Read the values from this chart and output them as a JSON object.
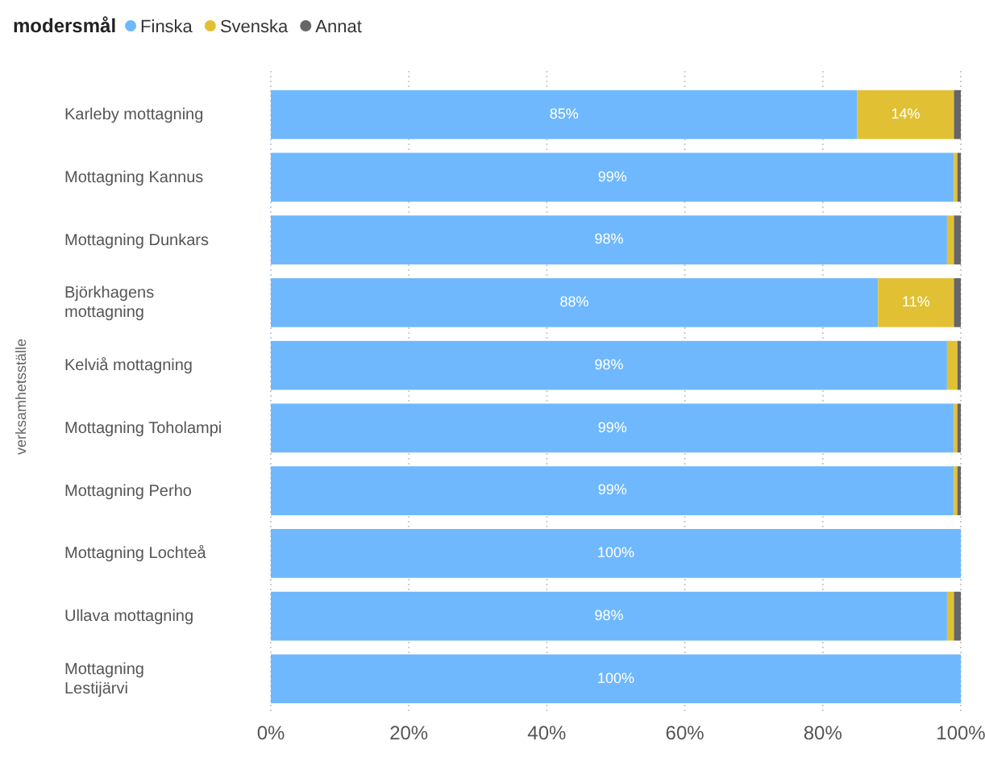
{
  "chart_data": {
    "type": "bar",
    "orientation": "horizontal",
    "stacked": true,
    "legend_title": "modersmål",
    "legend": "top left",
    "ylabel": "verksamhetsställe",
    "grid": "x",
    "categories": [
      "Karleby mottagning",
      "Mottagning Kannus",
      "Mottagning Dunkars",
      "Björkhagens mottagning",
      "Kelviå mottagning",
      "Mottagning Toholampi",
      "Mottagning Perho",
      "Mottagning Lochteå",
      "Ullava mottagning",
      "Mottagning Lestijärvi"
    ],
    "xlim": [
      0,
      100
    ],
    "xticks": [
      {
        "value": 0,
        "label": "0%"
      },
      {
        "value": 20,
        "label": "20%"
      },
      {
        "value": 40,
        "label": "40%"
      },
      {
        "value": 60,
        "label": "60%"
      },
      {
        "value": 80,
        "label": "80%"
      },
      {
        "value": 100,
        "label": "100%"
      }
    ],
    "series": [
      {
        "name": "Finska",
        "color": "#6fb8fe",
        "values": [
          85,
          99,
          98,
          88,
          98,
          99,
          99,
          100,
          98,
          100
        ],
        "value_labels": [
          "85%",
          "99%",
          "98%",
          "88%",
          "98%",
          "99%",
          "99%",
          "100%",
          "98%",
          "100%"
        ]
      },
      {
        "name": "Svenska",
        "color": "#e1c133",
        "values": [
          14,
          0.5,
          1,
          11,
          1.5,
          0.5,
          0.5,
          0,
          1,
          0
        ],
        "value_labels": [
          "14%",
          null,
          null,
          "11%",
          null,
          null,
          null,
          null,
          null,
          null
        ]
      },
      {
        "name": "Annat",
        "color": "#666666",
        "values": [
          1,
          0.5,
          1,
          1,
          0.5,
          0.5,
          0.5,
          0,
          1,
          0
        ]
      }
    ]
  }
}
